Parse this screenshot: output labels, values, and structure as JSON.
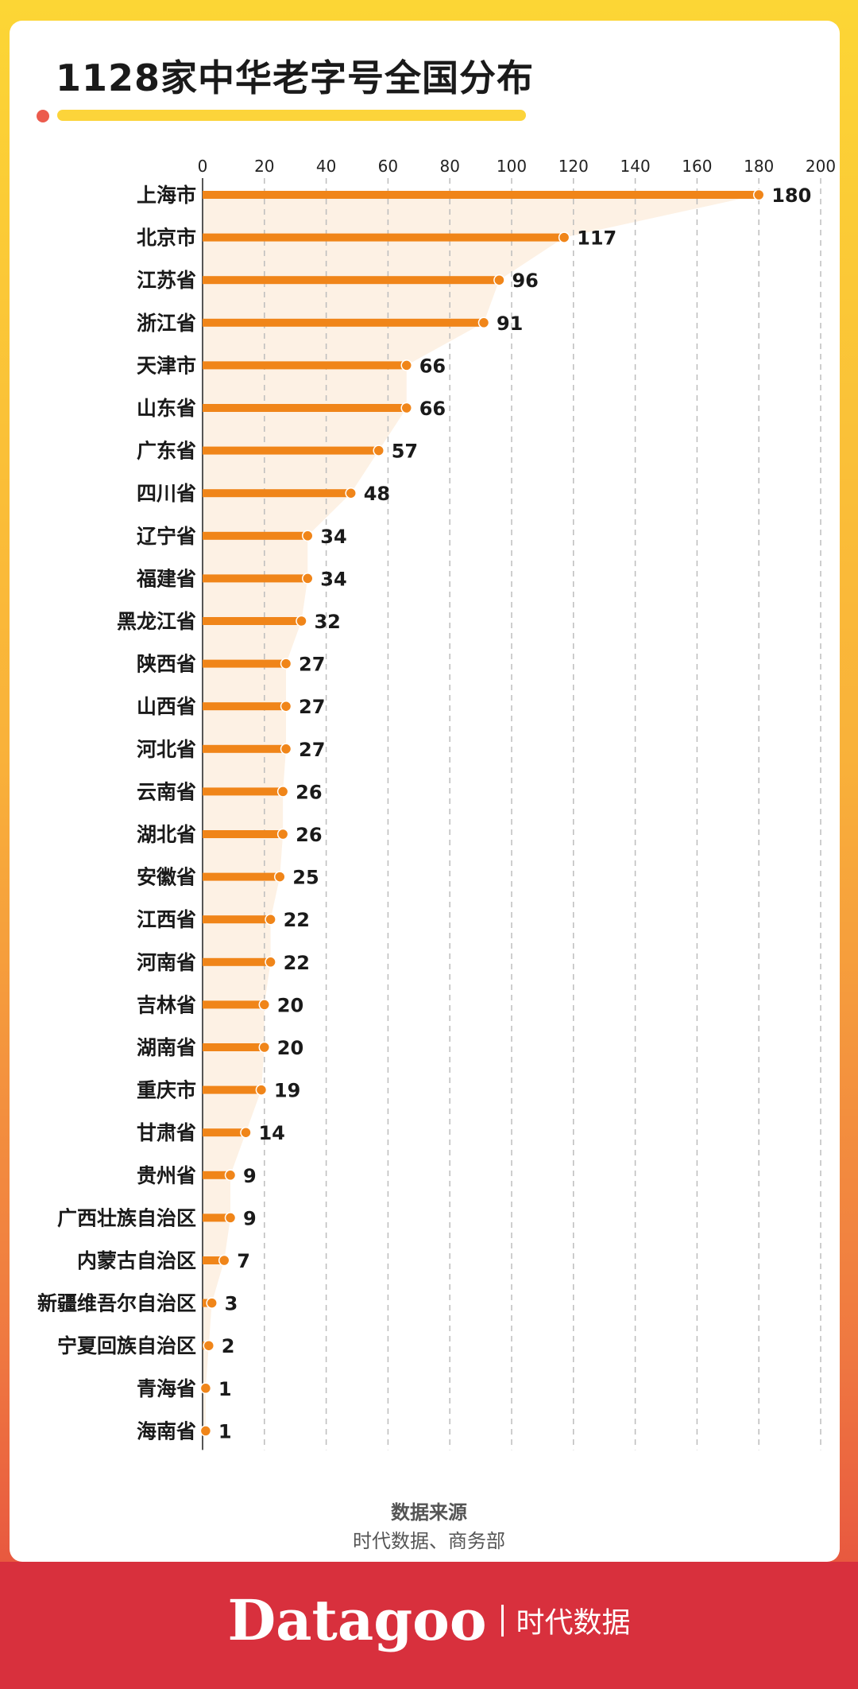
{
  "page": {
    "title": "1128家中华老字号全国分布",
    "source_label": "数据来源",
    "source_value": "时代数据、商务部",
    "brand_en": "Datagoo",
    "brand_cn": "时代数据"
  },
  "colors": {
    "accent": "#f08519",
    "area": "#fdf1e4",
    "frame_top": "#fcd635",
    "frame_bottom": "#e4463e",
    "footer": "#d8303d"
  },
  "chart_data": {
    "type": "bar",
    "orientation": "horizontal",
    "title": "",
    "xlabel": "",
    "ylabel": "",
    "xlim": [
      0,
      200
    ],
    "x_ticks": [
      0,
      20,
      40,
      60,
      80,
      100,
      120,
      140,
      160,
      180,
      200
    ],
    "x_axis_position": "top",
    "grid": "vertical dashed",
    "categories": [
      "上海市",
      "北京市",
      "江苏省",
      "浙江省",
      "天津市",
      "山东省",
      "广东省",
      "四川省",
      "辽宁省",
      "福建省",
      "黑龙江省",
      "陕西省",
      "山西省",
      "河北省",
      "云南省",
      "湖北省",
      "安徽省",
      "江西省",
      "河南省",
      "吉林省",
      "湖南省",
      "重庆市",
      "甘肃省",
      "贵州省",
      "广西壮族自治区",
      "内蒙古自治区",
      "新疆维吾尔自治区",
      "宁夏回族自治区",
      "青海省",
      "海南省"
    ],
    "values": [
      180,
      117,
      96,
      91,
      66,
      66,
      57,
      48,
      34,
      34,
      32,
      27,
      27,
      27,
      26,
      26,
      25,
      22,
      22,
      20,
      20,
      19,
      14,
      9,
      9,
      7,
      3,
      2,
      1,
      1
    ]
  }
}
